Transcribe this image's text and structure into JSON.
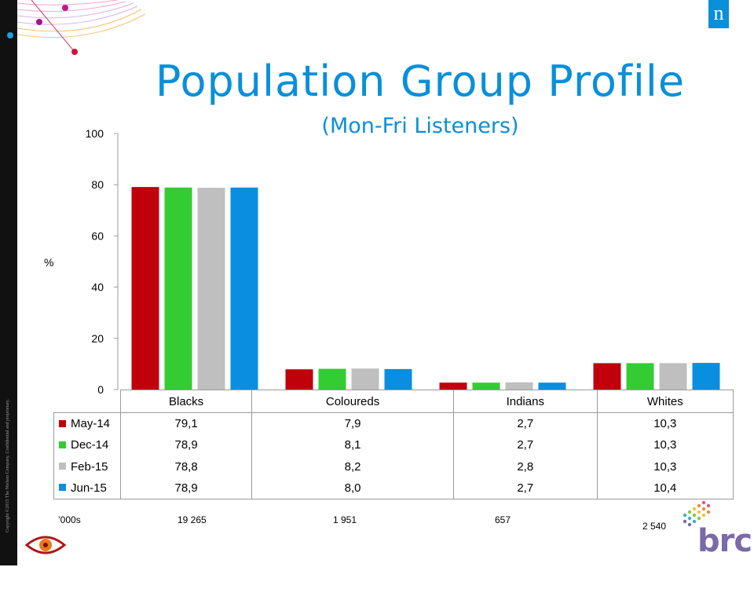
{
  "header": {
    "title": "Population Group Profile",
    "subtitle": "(Mon-Fri Listeners)",
    "logo_letter": "n"
  },
  "footer": {
    "copyright": "Copyright ©2013 The Nielsen Company. Confidential and proprietary.",
    "brand": "brc"
  },
  "colors": {
    "accent": "#0a8fd9",
    "brand_purple": "#7a6aa8"
  },
  "chart_data": {
    "type": "bar",
    "title": "Population Group Profile",
    "subtitle": "(Mon-Fri Listeners)",
    "ylabel": "%",
    "ylim": [
      0,
      100
    ],
    "yticks": [
      "0",
      "20",
      "40",
      "60",
      "80",
      "100"
    ],
    "categories": [
      "Blacks",
      "Coloureds",
      "Indians",
      "Whites"
    ],
    "series": [
      {
        "name": "May-14",
        "color": "#c0000b",
        "values": [
          79.1,
          7.9,
          2.7,
          10.3
        ],
        "labels": [
          "79,1",
          "7,9",
          "2,7",
          "10,3"
        ]
      },
      {
        "name": "Dec-14",
        "color": "#33cc33",
        "values": [
          78.9,
          8.1,
          2.7,
          10.3
        ],
        "labels": [
          "78,9",
          "8,1",
          "2,7",
          "10,3"
        ]
      },
      {
        "name": "Feb-15",
        "color": "#bfbfbf",
        "values": [
          78.8,
          8.2,
          2.8,
          10.3
        ],
        "labels": [
          "78,8",
          "8,2",
          "2,8",
          "10,3"
        ]
      },
      {
        "name": "Jun-15",
        "color": "#0a8fe0",
        "values": [
          78.9,
          8.0,
          2.7,
          10.4
        ],
        "labels": [
          "78,9",
          "8,0",
          "2,7",
          "10,4"
        ]
      }
    ],
    "totals_label": "’000s",
    "totals": [
      "19 265",
      "1 951",
      "657",
      "2 540"
    ],
    "grid": false,
    "legend_placement": "data-table"
  }
}
